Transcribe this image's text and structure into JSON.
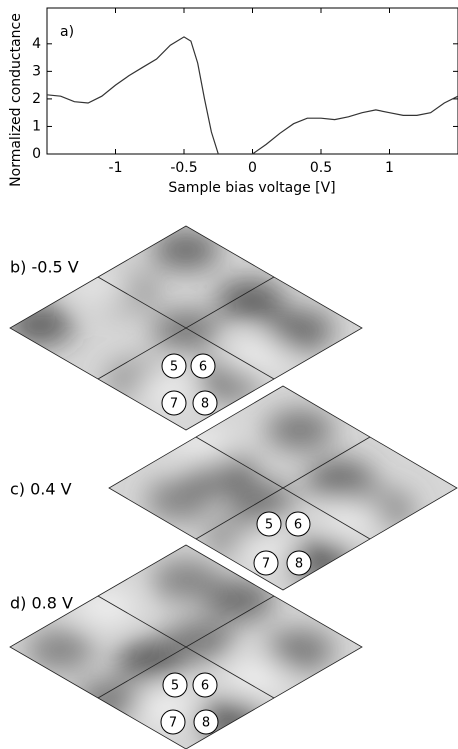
{
  "chart_data": {
    "type": "line",
    "panel_label": "a)",
    "xlabel": "Sample bias voltage [V]",
    "ylabel": "Normalized conductance",
    "x": [
      -1.5,
      -1.4,
      -1.3,
      -1.2,
      -1.1,
      -1.0,
      -0.9,
      -0.8,
      -0.7,
      -0.6,
      -0.5,
      -0.45,
      -0.4,
      -0.35,
      -0.3,
      -0.25,
      -0.1,
      0,
      0.1,
      0.2,
      0.3,
      0.4,
      0.5,
      0.6,
      0.7,
      0.8,
      0.9,
      1.0,
      1.1,
      1.2,
      1.3,
      1.4,
      1.5
    ],
    "values": [
      2.15,
      2.1,
      1.9,
      1.85,
      2.1,
      2.5,
      2.85,
      3.15,
      3.45,
      3.95,
      4.25,
      4.1,
      3.3,
      2.0,
      0.8,
      0,
      0,
      0,
      0.35,
      0.75,
      1.1,
      1.3,
      1.3,
      1.25,
      1.35,
      1.5,
      1.6,
      1.5,
      1.4,
      1.4,
      1.5,
      1.85,
      2.1
    ],
    "color": "#333333",
    "xlim": [
      -1.5,
      1.5
    ],
    "ylim": [
      0,
      5.3
    ],
    "xticks": [
      -1,
      -0.5,
      0,
      0.5,
      1
    ],
    "yticks": [
      0,
      1,
      2,
      3,
      4
    ]
  },
  "panels": [
    {
      "label": "b) -0.5 V",
      "markers": [
        "5",
        "6",
        "7",
        "8"
      ]
    },
    {
      "label": "c) 0.4 V",
      "markers": [
        "5",
        "6",
        "7",
        "8"
      ]
    },
    {
      "label": "d) 0.8 V",
      "markers": [
        "5",
        "6",
        "7",
        "8"
      ]
    }
  ]
}
